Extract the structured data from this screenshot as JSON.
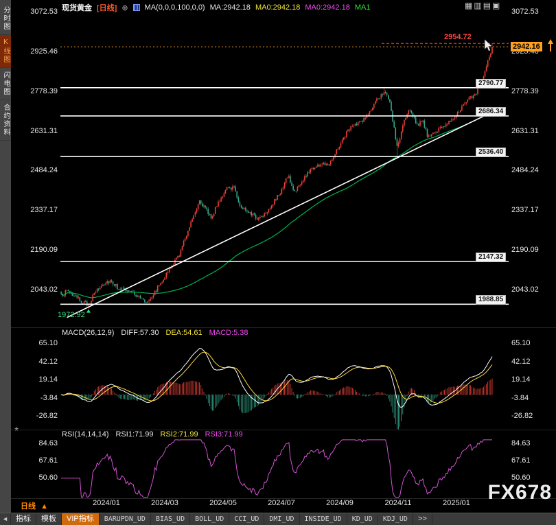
{
  "header": {
    "symbol": "现货黄金",
    "period_tag": "[日线]",
    "plus_icon": "⊕",
    "ma_settings": "MA(0,0,0,100,0,0)",
    "ma_value": "MA:2942.18",
    "ma0_yellow": "MA0:2942.18",
    "ma0_magenta": "MA0:2942.18",
    "ma1_green": "MA1",
    "window_buttons": [
      {
        "icon": "▦",
        "key": "layout-grid"
      },
      {
        "icon": "▥",
        "key": "layout-vertical-split"
      },
      {
        "icon": "▤",
        "key": "layout-horizontal-split"
      },
      {
        "icon": "▣",
        "key": "layout-single"
      }
    ]
  },
  "sidebar": {
    "items": [
      {
        "label": "分时图",
        "key": "timeshare-chart",
        "active": false
      },
      {
        "label": "K线图",
        "key": "kline-chart",
        "active": true
      },
      {
        "label": "闪电图",
        "key": "tick-chart",
        "active": false
      },
      {
        "label": "合约资料",
        "key": "contract-info",
        "active": false
      }
    ]
  },
  "icons": {
    "annotation_marker": "*"
  },
  "footer": {
    "period_label": "日线",
    "period_arrow": "▲",
    "watermark": "FX678"
  },
  "toolbar": {
    "back_arrow": "◄",
    "tabs": [
      {
        "label": "指标",
        "key": "indicators",
        "style": "cn"
      },
      {
        "label": "模板",
        "key": "templates",
        "style": "cn"
      },
      {
        "label": "VIP指标",
        "key": "vip-indicators",
        "style": "vip"
      },
      {
        "label": "BARUPDN_UD",
        "key": "barupdn-ud",
        "style": "ud"
      },
      {
        "label": "BIAS_UD",
        "key": "bias-ud",
        "style": "ud"
      },
      {
        "label": "BOLL_UD",
        "key": "boll-ud",
        "style": "ud"
      },
      {
        "label": "CCI_UD",
        "key": "cci-ud",
        "style": "ud"
      },
      {
        "label": "DMI_UD",
        "key": "dmi-ud",
        "style": "ud"
      },
      {
        "label": "INSIDE_UD",
        "key": "inside-ud",
        "style": "ud"
      },
      {
        "label": "KD_UD",
        "key": "kd-ud",
        "style": "ud"
      },
      {
        "label": "KDJ_UD",
        "key": "kdj-ud",
        "style": "ud"
      },
      {
        "label": ">>",
        "key": "more",
        "style": "more"
      }
    ]
  },
  "chart_data": {
    "type": "candlestick",
    "title": "现货黄金 日线",
    "x_labels": [
      "2024/01",
      "2024/03",
      "2024/05",
      "2024/07",
      "2024/09",
      "2024/11",
      "2025/01"
    ],
    "y_labels": [
      "3072.53",
      "2925.46",
      "2778.39",
      "2631.31",
      "2484.24",
      "2337.17",
      "2190.09",
      "2043.02"
    ],
    "current_price": "2942.16",
    "recent_high": "2954.72",
    "marked_low": "1972.92",
    "support_resistance_levels": [
      "2790.77",
      "2686.34",
      "2536.40",
      "2147.32",
      "1988.85"
    ],
    "candles": 300,
    "price_path": [
      [
        0.0,
        2020
      ],
      [
        0.015,
        2042
      ],
      [
        0.035,
        2012
      ],
      [
        0.063,
        1985
      ],
      [
        0.08,
        2035
      ],
      [
        0.1,
        2068
      ],
      [
        0.115,
        2078
      ],
      [
        0.13,
        2052
      ],
      [
        0.15,
        2040
      ],
      [
        0.17,
        2028
      ],
      [
        0.197,
        1996
      ],
      [
        0.215,
        2028
      ],
      [
        0.235,
        2080
      ],
      [
        0.255,
        2125
      ],
      [
        0.275,
        2175
      ],
      [
        0.3,
        2290
      ],
      [
        0.321,
        2375
      ],
      [
        0.335,
        2340
      ],
      [
        0.35,
        2310
      ],
      [
        0.365,
        2370
      ],
      [
        0.385,
        2415
      ],
      [
        0.402,
        2425
      ],
      [
        0.415,
        2350
      ],
      [
        0.435,
        2335
      ],
      [
        0.455,
        2305
      ],
      [
        0.475,
        2330
      ],
      [
        0.495,
        2370
      ],
      [
        0.515,
        2420
      ],
      [
        0.526,
        2468
      ],
      [
        0.54,
        2405
      ],
      [
        0.558,
        2438
      ],
      [
        0.578,
        2490
      ],
      [
        0.6,
        2505
      ],
      [
        0.622,
        2512
      ],
      [
        0.645,
        2575
      ],
      [
        0.668,
        2640
      ],
      [
        0.69,
        2658
      ],
      [
        0.712,
        2690
      ],
      [
        0.733,
        2745
      ],
      [
        0.75,
        2782
      ],
      [
        0.763,
        2730
      ],
      [
        0.78,
        2565
      ],
      [
        0.795,
        2665
      ],
      [
        0.81,
        2712
      ],
      [
        0.825,
        2655
      ],
      [
        0.84,
        2662
      ],
      [
        0.852,
        2605
      ],
      [
        0.868,
        2625
      ],
      [
        0.885,
        2648
      ],
      [
        0.905,
        2672
      ],
      [
        0.925,
        2705
      ],
      [
        0.945,
        2748
      ],
      [
        0.962,
        2772
      ],
      [
        0.978,
        2820
      ],
      [
        0.99,
        2890
      ],
      [
        1.0,
        2940
      ]
    ],
    "trendline": [
      [
        0.015,
        1940
      ],
      [
        0.995,
        2698
      ]
    ],
    "colors": {
      "up": "#ef4137",
      "down": "#35a98c",
      "ma": "#00b44c",
      "trend": "#ffffff",
      "level": "#ffffff",
      "high_line": "#ff4343",
      "current_line": "#ffa01e",
      "rsi": "#d355d3",
      "macd_diff": "#ffffff",
      "macd_dea": "#ffd93e"
    },
    "macd_panel": {
      "title": "MACD(26,12,9)",
      "diff": "DIFF:57.30",
      "dea": "DEA:54.61",
      "macd": "MACD:5.38",
      "y_labels": [
        "65.10",
        "42.12",
        "19.14",
        "-3.84",
        "-26.82"
      ]
    },
    "rsi_panel": {
      "title": "RSI(14,14,14)",
      "rsi1": "RSI1:71.99",
      "rsi2": "RSI2:71.99",
      "rsi3": "RSI3:71.99",
      "y_labels": [
        "84.63",
        "67.61",
        "50.60"
      ]
    }
  }
}
